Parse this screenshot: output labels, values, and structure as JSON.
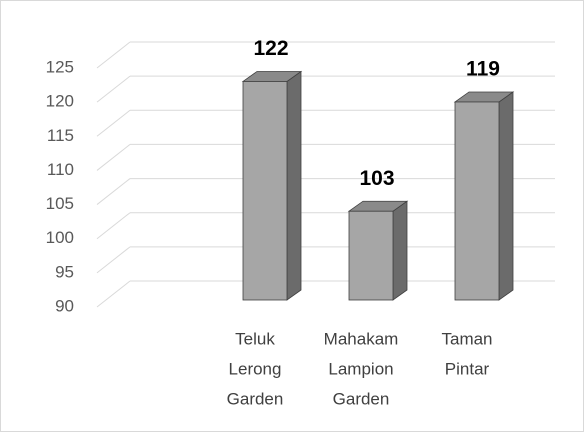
{
  "chart_data": {
    "type": "bar3d",
    "categories": [
      [
        "Teluk",
        "Lerong",
        "Garden"
      ],
      [
        "Mahakam",
        "Lampion",
        "Garden"
      ],
      [
        "Taman",
        "Pintar"
      ]
    ],
    "values": [
      122,
      103,
      119
    ],
    "color": "#a6a6a6",
    "ylim": [
      90,
      125
    ],
    "yticks": [
      90,
      95,
      100,
      105,
      110,
      115,
      120,
      125
    ],
    "grid": true
  }
}
